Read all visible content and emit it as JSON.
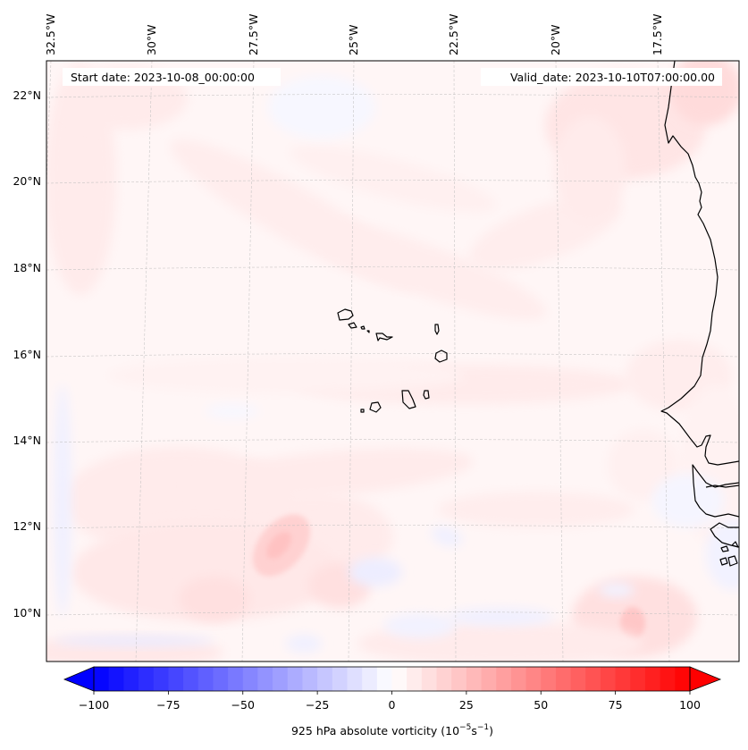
{
  "figure": {
    "annotations": {
      "start_date": "Start date: 2023-10-08_00:00:00",
      "valid_date": "Valid_date: 2023-10-10T07:00:00.00"
    },
    "colorbar": {
      "label_main": "925 hPa absolute vorticity (10",
      "label_exp1": "−5",
      "label_mid": "s",
      "label_exp2": "−1",
      "label_end": ")",
      "ticks": [
        "−100",
        "−75",
        "−50",
        "−25",
        "0",
        "25",
        "50",
        "75",
        "100"
      ],
      "extend": "both"
    }
  },
  "chart_data": {
    "type": "heatmap",
    "title": "",
    "variable": "925 hPa absolute vorticity",
    "units": "10^-5 s^-1",
    "colormap": "bwr",
    "vmin": -100,
    "vmax": 100,
    "level_step": 5,
    "cbar_ticks": [
      -100,
      -75,
      -50,
      -25,
      0,
      25,
      50,
      75,
      100
    ],
    "lon_ticks": [
      "32.5°W",
      "30°W",
      "27.5°W",
      "25°W",
      "22.5°W",
      "20°W",
      "17.5°W"
    ],
    "lat_ticks": [
      "22°N",
      "20°N",
      "18°N",
      "16°N",
      "14°N",
      "12°N",
      "10°N"
    ],
    "lon_values": [
      -32.5,
      -30,
      -27.5,
      -25,
      -22.5,
      -20,
      -17.5
    ],
    "lat_values": [
      22,
      20,
      18,
      16,
      14,
      12,
      10
    ],
    "extent": {
      "lon": [
        -32.6,
        -15.4
      ],
      "lat": [
        8.9,
        22.8
      ]
    },
    "grid": true,
    "features": [
      {
        "name": "Cape Verde islands",
        "lon": -24.0,
        "lat": 15.9
      },
      {
        "name": "West African coastline (Mauritania / Senegal / Gambia / Guinea-Bissau)",
        "lon": -16.5,
        "lat": 15
      }
    ],
    "field_notes": [
      {
        "region": "background",
        "value_range": [
          0,
          10
        ]
      },
      {
        "region": "SE of Cape Verde near 11.5N 27W",
        "value_range": [
          15,
          25
        ],
        "sign": "positive"
      },
      {
        "region": "near 9.5N 18W",
        "value_range": [
          15,
          25
        ],
        "sign": "positive"
      },
      {
        "region": "band near 10-11N 20-25W",
        "value_range": [
          -10,
          -5
        ],
        "sign": "negative"
      }
    ]
  }
}
